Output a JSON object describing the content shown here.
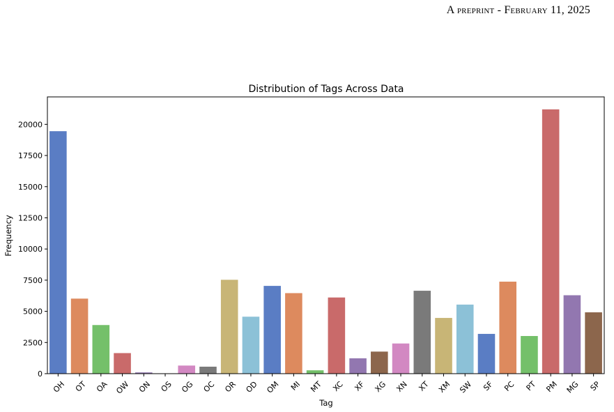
{
  "header": {
    "running_head": "A preprint - February 11, 2025"
  },
  "chart_data": {
    "type": "bar",
    "title": "Distribution of Tags Across Data",
    "xlabel": "Tag",
    "ylabel": "Frequency",
    "ylim": [
      0,
      22200
    ],
    "yticks": [
      0,
      2500,
      5000,
      7500,
      10000,
      12500,
      15000,
      17500,
      20000
    ],
    "grid": false,
    "legend": "none",
    "categories": [
      "OH",
      "OT",
      "OA",
      "OW",
      "ON",
      "OS",
      "OG",
      "OC",
      "OR",
      "OD",
      "OM",
      "MI",
      "MT",
      "XC",
      "XF",
      "XG",
      "XN",
      "XT",
      "XM",
      "SW",
      "SF",
      "PC",
      "PT",
      "PM",
      "MG",
      "SP"
    ],
    "values": [
      19450,
      6020,
      3900,
      1650,
      100,
      20,
      650,
      560,
      7530,
      4570,
      7040,
      6460,
      270,
      6110,
      1230,
      1770,
      2420,
      6650,
      4470,
      5540,
      3190,
      7380,
      3020,
      21200,
      6290,
      4920
    ],
    "colors": [
      "#5a7dc4",
      "#dd8a5e",
      "#74c06a",
      "#c96a6a",
      "#9277b0",
      "#8c664c",
      "#d288c2",
      "#7a7a7a",
      "#c8b576",
      "#8cc1d7",
      "#5a7dc4",
      "#dd8a5e",
      "#74c06a",
      "#c96a6a",
      "#9277b0",
      "#8c664c",
      "#d288c2",
      "#7a7a7a",
      "#c8b576",
      "#8cc1d7",
      "#5a7dc4",
      "#dd8a5e",
      "#74c06a",
      "#c96a6a",
      "#9277b0",
      "#8c664c"
    ]
  }
}
